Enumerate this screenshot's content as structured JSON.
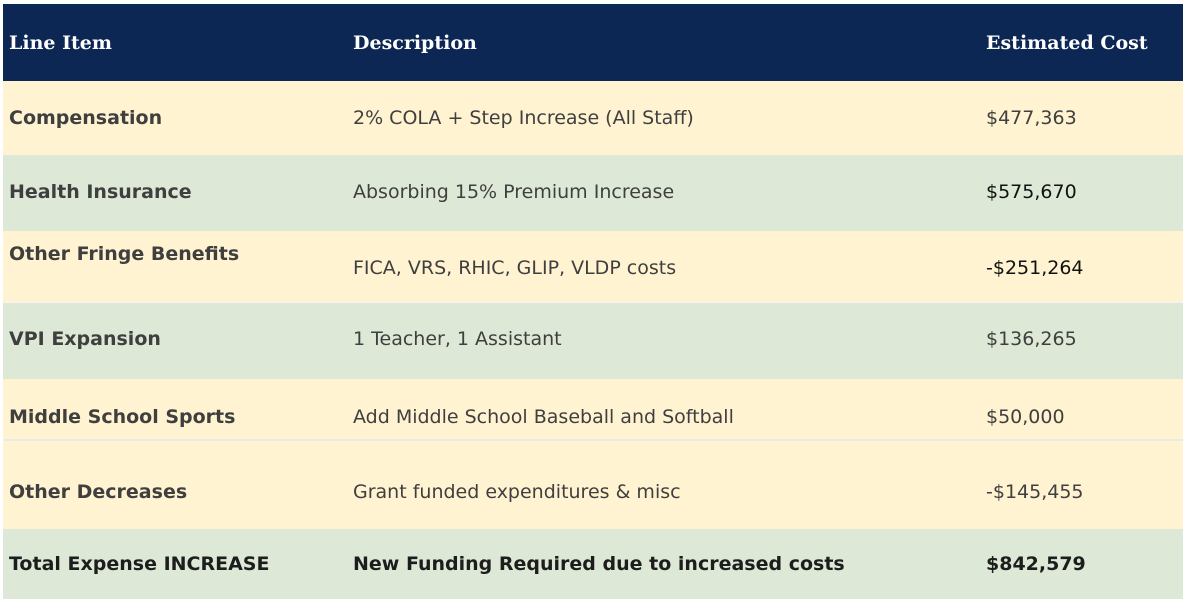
{
  "table": {
    "headers": [
      "Line Item",
      "Description",
      "Estimated Cost"
    ],
    "rows": [
      {
        "item": "Compensation",
        "description": "2% COLA + Step Increase (All Staff)",
        "cost": "$477,363"
      },
      {
        "item": "Health Insurance",
        "description": "Absorbing 15% Premium Increase",
        "cost": "$575,670"
      },
      {
        "item": "Other Fringe Benefits",
        "description": "FICA, VRS, RHIC, GLIP, VLDP costs",
        "cost": "-$251,264"
      },
      {
        "item": "VPI Expansion",
        "description": "1 Teacher, 1 Assistant",
        "cost": "$136,265"
      },
      {
        "item": "Middle School Sports",
        "description": "Add Middle School Baseball and Softball",
        "cost": "$50,000"
      },
      {
        "item": "Other Decreases",
        "description": "Grant funded expenditures & misc",
        "cost": "-$145,455"
      }
    ],
    "total": {
      "item": "Total Expense INCREASE",
      "description": "New Funding Required due to increased costs",
      "cost": "$842,579"
    }
  },
  "colors": {
    "header_bg": "#0c2753",
    "cream_row": "#fff3d1",
    "green_row": "#dde9d6"
  }
}
